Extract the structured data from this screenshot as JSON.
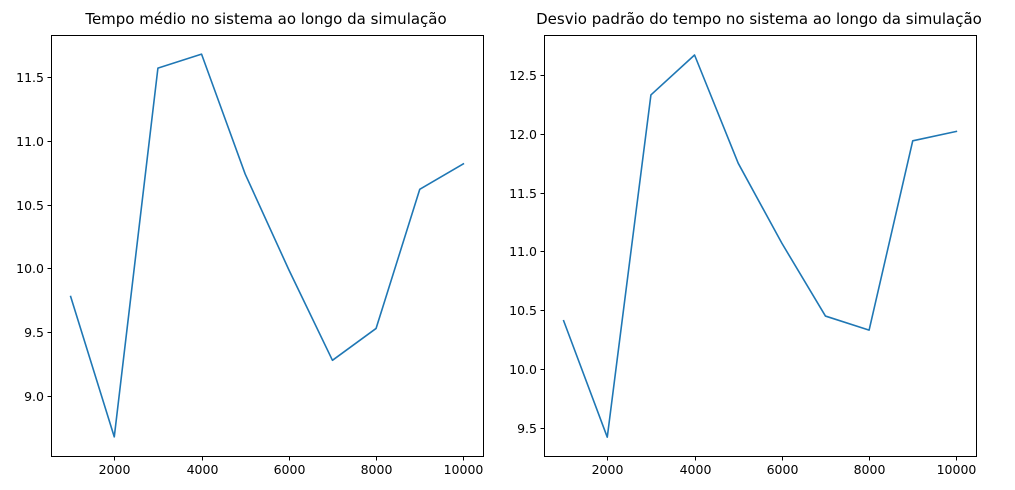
{
  "chart_data": [
    {
      "type": "line",
      "title": "Tempo médio no sistema ao longo da simulação",
      "xlabel": "",
      "ylabel": "",
      "x": [
        1000,
        2000,
        3000,
        4000,
        5000,
        6000,
        7000,
        8000,
        9000,
        10000
      ],
      "series": [
        {
          "values": [
            9.78,
            8.68,
            11.57,
            11.68,
            10.74,
            9.99,
            9.28,
            9.53,
            10.62,
            10.82
          ]
        }
      ],
      "xticks": [
        2000,
        4000,
        6000,
        8000,
        10000
      ],
      "xtick_labels": [
        "2000",
        "4000",
        "6000",
        "8000",
        "10000"
      ],
      "yticks": [
        9.0,
        9.5,
        10.0,
        10.5,
        11.0,
        11.5
      ],
      "ytick_labels": [
        "9.0",
        "9.5",
        "10.0",
        "10.5",
        "11.0",
        "11.5"
      ],
      "xlim": [
        550,
        10450
      ],
      "ylim": [
        8.53,
        11.83
      ],
      "grid": false,
      "color": "#1f77b4"
    },
    {
      "type": "line",
      "title": "Desvio padrão do tempo no sistema ao longo da simulação",
      "xlabel": "",
      "ylabel": "",
      "x": [
        1000,
        2000,
        3000,
        4000,
        5000,
        6000,
        7000,
        8000,
        9000,
        10000
      ],
      "series": [
        {
          "values": [
            10.41,
            9.42,
            12.33,
            12.67,
            11.75,
            11.07,
            10.45,
            10.33,
            11.94,
            12.02
          ]
        }
      ],
      "xticks": [
        2000,
        4000,
        6000,
        8000,
        10000
      ],
      "xtick_labels": [
        "2000",
        "4000",
        "6000",
        "8000",
        "10000"
      ],
      "yticks": [
        9.5,
        10.0,
        10.5,
        11.0,
        11.5,
        12.0,
        12.5
      ],
      "ytick_labels": [
        "9.5",
        "10.0",
        "10.5",
        "11.0",
        "11.5",
        "12.0",
        "12.5"
      ],
      "xlim": [
        550,
        10450
      ],
      "ylim": [
        9.26,
        12.84
      ],
      "grid": false,
      "color": "#1f77b4"
    }
  ]
}
